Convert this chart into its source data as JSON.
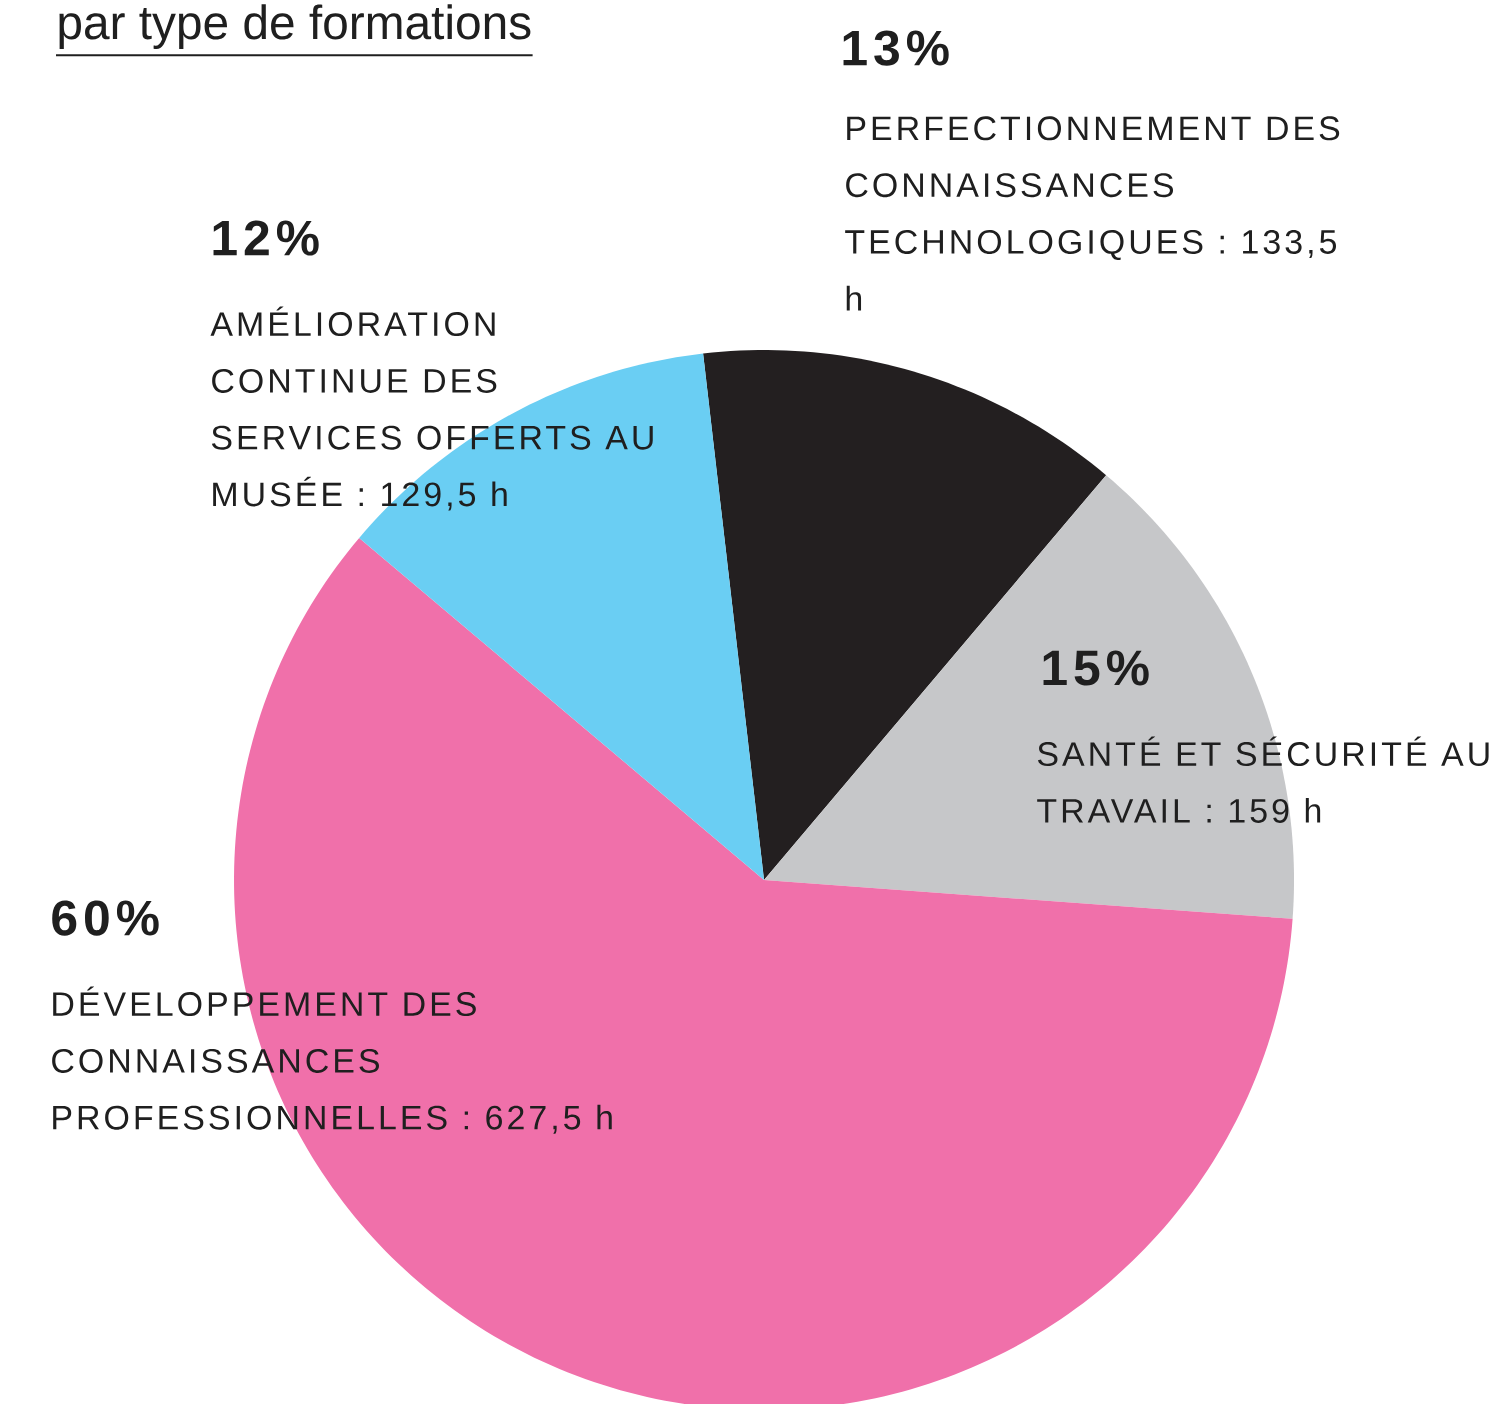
{
  "chart_data": {
    "type": "pie",
    "title": "par type de formations",
    "categories": [
      "PERFECTIONNEMENT DES CONNAISSANCES TECHNOLOGIQUES : 133,5 h",
      "SANTÉ ET SÉCURITÉ AU TRAVAIL : 159 h",
      "DÉVELOPPEMENT DES CONNAISSANCES PROFESSIONNELLES : 627,5 h",
      "AMÉLIORATION CONTINUE DES SERVICES OFFERTS AU MUSÉE : 129,5 h"
    ],
    "values": [
      13,
      15,
      60,
      12
    ],
    "value_labels": [
      "13%",
      "15%",
      "60%",
      "12%"
    ],
    "colors": [
      "#231f20",
      "#c6c7c9",
      "#f070aa",
      "#6acef3"
    ]
  }
}
